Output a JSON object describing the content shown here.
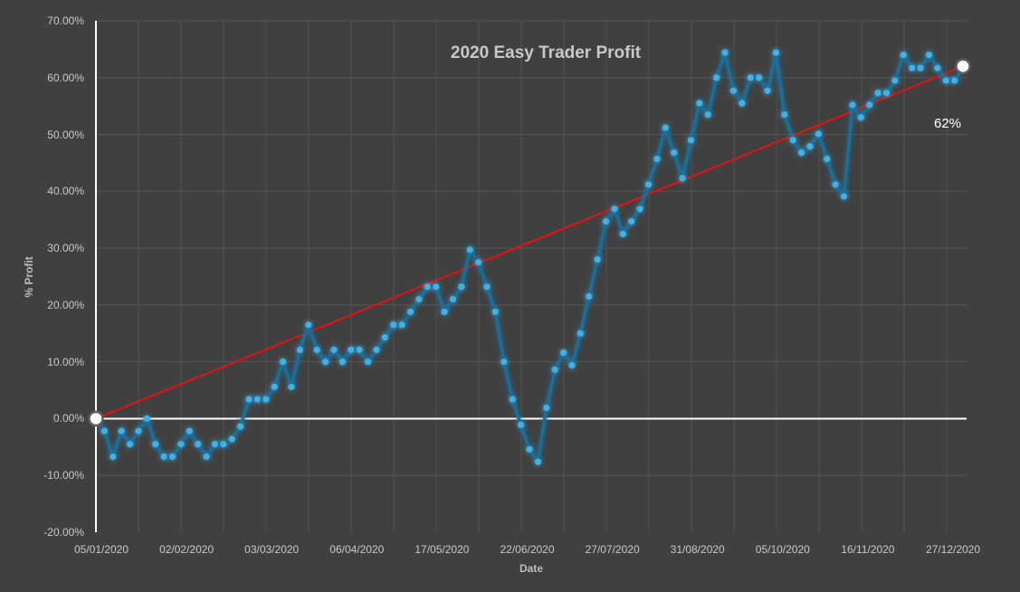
{
  "chart_data": {
    "type": "line",
    "title": "2020 Easy Trader Profit",
    "xlabel": "Date",
    "ylabel": "% Profit",
    "ylim": [
      -20,
      70
    ],
    "y_ticks": [
      "70.00%",
      "60.00%",
      "50.00%",
      "40.00%",
      "30.00%",
      "20.00%",
      "10.00%",
      "0.00%",
      "-10.00%",
      "-20.00%"
    ],
    "y_tick_values": [
      70,
      60,
      50,
      40,
      30,
      20,
      10,
      0,
      -10,
      -20
    ],
    "x_ticks": [
      "05/01/2020",
      "02/02/2020",
      "03/03/2020",
      "06/04/2020",
      "17/05/2020",
      "22/06/2020",
      "27/07/2020",
      "31/08/2020",
      "05/10/2020",
      "16/11/2020",
      "27/12/2020"
    ],
    "grid": true,
    "legend": "none",
    "annotation": "62%",
    "series": [
      {
        "name": "% Profit",
        "color": "#3fb0e6",
        "values": [
          0,
          -2.2,
          -6.7,
          -2.2,
          -4.5,
          -2.2,
          0,
          -4.5,
          -6.7,
          -6.7,
          -4.5,
          -2.2,
          -4.5,
          -6.7,
          -4.5,
          -4.5,
          -3.6,
          -1.4,
          3.4,
          3.4,
          3.4,
          5.6,
          10.0,
          5.6,
          12.1,
          16.5,
          12.1,
          10.0,
          12.1,
          10.0,
          12.1,
          12.1,
          10.0,
          12.1,
          14.3,
          16.5,
          16.5,
          18.8,
          21.0,
          23.2,
          23.2,
          18.8,
          21.0,
          23.2,
          29.7,
          27.5,
          23.2,
          18.8,
          10.0,
          3.4,
          -1.1,
          -5.4,
          -7.6,
          1.9,
          8.6,
          11.6,
          9.4,
          15.0,
          21.5,
          28.0,
          34.7,
          36.9,
          32.5,
          34.7,
          36.9,
          41.2,
          45.7,
          51.2,
          46.8,
          42.3,
          49.0,
          55.5,
          53.5,
          60.0,
          64.4,
          57.7,
          55.5,
          60.0,
          60.0,
          57.7,
          64.4,
          53.5,
          49.0,
          46.8,
          47.9,
          50.1,
          45.7,
          41.2,
          39.1,
          55.2,
          53.0,
          55.2,
          57.3,
          57.3,
          59.5,
          64.0,
          61.7,
          61.7,
          64.0,
          61.7,
          59.5,
          59.5,
          61.7
        ]
      },
      {
        "name": "Trend",
        "color": "#e81010",
        "values_start_end": [
          0,
          62
        ]
      }
    ]
  },
  "colors": {
    "background": "#404040",
    "grid": "#565656",
    "axis": "#ffffff",
    "series": "#3fb0e6",
    "series_line": "#1b6e99",
    "trend": "#e81010"
  }
}
